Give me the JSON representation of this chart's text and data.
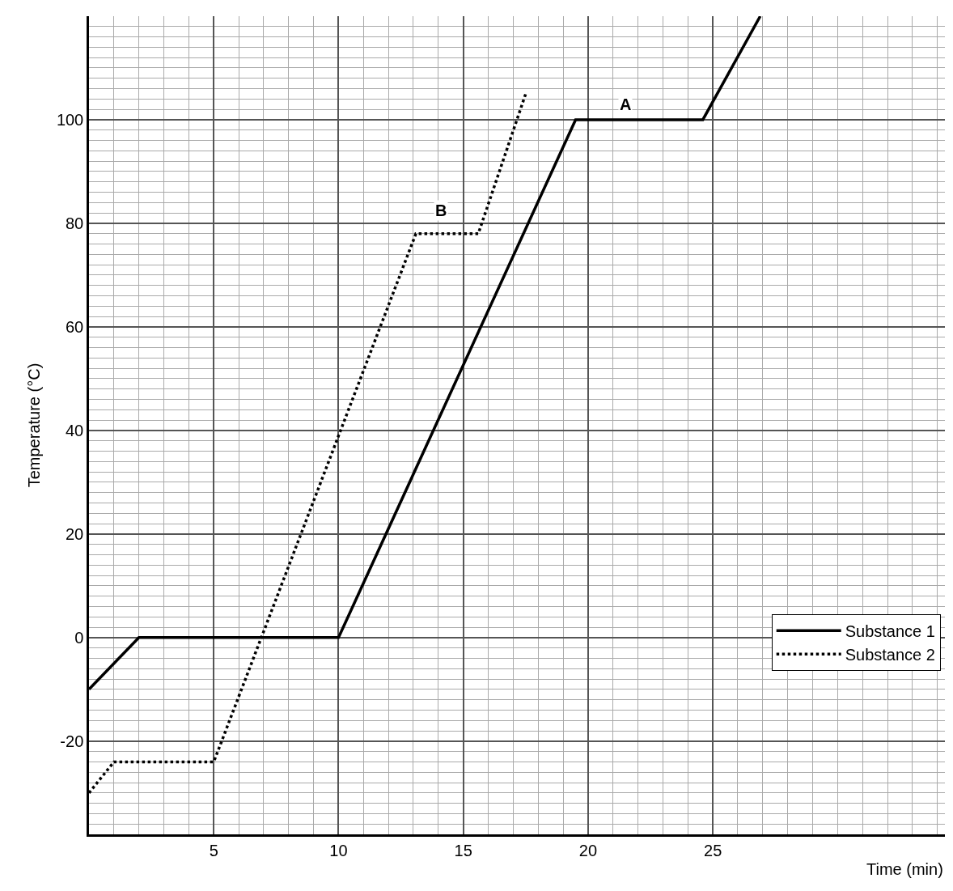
{
  "chart_data": {
    "type": "line",
    "xlabel": "Time (min)",
    "ylabel": "Temperature (°C)",
    "xlim": [
      0,
      34.3
    ],
    "ylim": [
      -38,
      120
    ],
    "xticks": [
      5,
      10,
      15,
      20,
      25
    ],
    "yticks": [
      -20,
      0,
      20,
      40,
      60,
      80,
      100
    ],
    "grid": true,
    "legend": "bottom right",
    "marker": "none",
    "series": [
      {
        "name": "Substance 1",
        "color": "#000000",
        "line_style": "solid",
        "x": [
          0,
          2,
          10,
          19.5,
          24.6,
          26.9
        ],
        "values": [
          -10,
          0,
          0,
          100,
          100,
          120
        ]
      },
      {
        "name": "Substance 2",
        "color": "#000000",
        "line_style": "dotted",
        "x": [
          0,
          1,
          5,
          13.1,
          15.6,
          17.5
        ],
        "values": [
          -30,
          -24,
          -24,
          78,
          78,
          105
        ]
      }
    ],
    "annotations": [
      "A",
      "B"
    ]
  }
}
